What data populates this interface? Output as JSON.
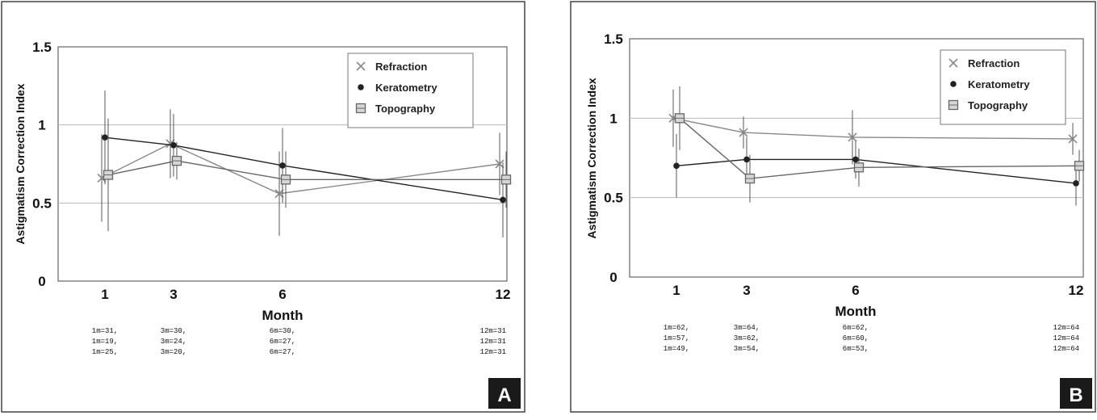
{
  "chart_data": [
    {
      "type": "line",
      "panel_label": "A",
      "ylabel": "Astigmatism Correction Index",
      "xlabel": "Month",
      "categories": [
        "1",
        "3",
        "6",
        "12"
      ],
      "x": [
        1,
        3,
        6,
        12
      ],
      "ylim": [
        0,
        1.5
      ],
      "yticks": [
        {
          "value": 0,
          "label": "0"
        },
        {
          "value": 0.5,
          "label": "0.5"
        },
        {
          "value": 1,
          "label": "1"
        },
        {
          "value": 1.5,
          "label": "1.5"
        }
      ],
      "grid": true,
      "legend_position": "top-right",
      "series": [
        {
          "name": "Refraction",
          "marker": "x",
          "color": "#888888",
          "values": [
            0.66,
            0.88,
            0.56,
            0.75
          ],
          "err": [
            0.28,
            0.22,
            0.27,
            0.2
          ]
        },
        {
          "name": "Keratometry",
          "marker": "dot",
          "color": "#222222",
          "values": [
            0.92,
            0.87,
            0.74,
            0.52
          ],
          "err": [
            0.3,
            0.2,
            0.24,
            0.24
          ]
        },
        {
          "name": "Topography",
          "marker": "square",
          "color": "#666666",
          "values": [
            0.68,
            0.77,
            0.65,
            0.65
          ],
          "err": [
            0.36,
            0.12,
            0.18,
            0.18
          ]
        }
      ],
      "n_labels": [
        [
          "1m=31,",
          "3m=30,",
          "6m=30,",
          "12m=31"
        ],
        [
          "1m=19,",
          "3m=24,",
          "6m=27,",
          "12m=31"
        ],
        [
          "1m=25,",
          "3m=20,",
          "6m=27,",
          "12m=31"
        ]
      ]
    },
    {
      "type": "line",
      "panel_label": "B",
      "ylabel": "Astigmatism Correction Index",
      "xlabel": "Month",
      "categories": [
        "1",
        "3",
        "6",
        "12"
      ],
      "x": [
        1,
        3,
        6,
        12
      ],
      "ylim": [
        0,
        1.5
      ],
      "yticks": [
        {
          "value": 0,
          "label": "0"
        },
        {
          "value": 0.5,
          "label": "0.5"
        },
        {
          "value": 1,
          "label": "1"
        },
        {
          "value": 1.5,
          "label": "1.5"
        }
      ],
      "grid": true,
      "legend_position": "top-right",
      "series": [
        {
          "name": "Refraction",
          "marker": "x",
          "color": "#888888",
          "values": [
            1.0,
            0.91,
            0.88,
            0.87
          ],
          "err": [
            0.18,
            0.1,
            0.17,
            0.1
          ]
        },
        {
          "name": "Keratometry",
          "marker": "dot",
          "color": "#222222",
          "values": [
            0.7,
            0.74,
            0.74,
            0.59
          ],
          "err": [
            0.2,
            0.14,
            0.12,
            0.14
          ]
        },
        {
          "name": "Topography",
          "marker": "square",
          "color": "#666666",
          "values": [
            1.0,
            0.62,
            0.69,
            0.7
          ],
          "err": [
            0.2,
            0.15,
            0.12,
            0.1
          ]
        }
      ],
      "n_labels": [
        [
          "1m=62,",
          "3m=64,",
          "6m=62,",
          "12m=64"
        ],
        [
          "1m=57,",
          "3m=62,",
          "6m=60,",
          "12m=64"
        ],
        [
          "1m=49,",
          "3m=54,",
          "6m=53,",
          "12m=64"
        ]
      ]
    }
  ]
}
